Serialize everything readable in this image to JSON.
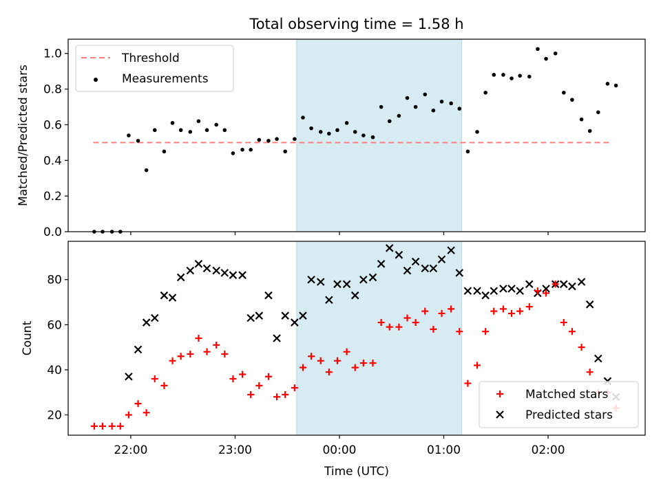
{
  "title": "Total observing time = 1.58 h",
  "colors": {
    "threshold": "#ff7f7f",
    "highlight": "#add8e6",
    "measurement": "#000000",
    "matched": "#ff0000",
    "predicted": "#000000"
  },
  "chart_data": [
    {
      "type": "scatter",
      "ylabel": "Matched/Predicted stars",
      "xlim": [
        -0.6,
        4.93
      ],
      "ylim": [
        0,
        1.08
      ],
      "yticks": [
        0.0,
        0.2,
        0.4,
        0.6,
        0.8,
        1.0
      ],
      "ytick_labels": [
        "0.0",
        "0.2",
        "0.4",
        "0.6",
        "0.8",
        "1.0"
      ],
      "legend_position": "top-left",
      "highlight_span": [
        1.59,
        3.17
      ],
      "threshold": {
        "name": "Threshold",
        "y": 0.5,
        "x_range": [
          -0.36,
          4.6
        ]
      },
      "series": [
        {
          "name": "Measurements",
          "x": [
            -0.35,
            -0.27,
            -0.18,
            -0.1,
            -0.02,
            0.07,
            0.15,
            0.23,
            0.32,
            0.4,
            0.48,
            0.57,
            0.65,
            0.73,
            0.82,
            0.9,
            0.98,
            1.07,
            1.15,
            1.23,
            1.32,
            1.4,
            1.48,
            1.57,
            1.65,
            1.73,
            1.82,
            1.9,
            1.98,
            2.07,
            2.15,
            2.23,
            2.32,
            2.4,
            2.48,
            2.57,
            2.65,
            2.73,
            2.82,
            2.9,
            2.98,
            3.07,
            3.15,
            3.23,
            3.32,
            3.4,
            3.48,
            3.57,
            3.65,
            3.73,
            3.82,
            3.9,
            3.98,
            4.07,
            4.15,
            4.23,
            4.32,
            4.4,
            4.48,
            4.57,
            4.65
          ],
          "values": [
            0,
            0,
            0,
            0,
            0.54,
            0.51,
            0.345,
            0.57,
            0.45,
            0.61,
            0.57,
            0.56,
            0.62,
            0.57,
            0.6,
            0.57,
            0.44,
            0.46,
            0.46,
            0.515,
            0.51,
            0.52,
            0.45,
            0.52,
            0.64,
            0.58,
            0.56,
            0.55,
            0.57,
            0.61,
            0.56,
            0.54,
            0.53,
            0.7,
            0.62,
            0.65,
            0.75,
            0.7,
            0.77,
            0.68,
            0.73,
            0.72,
            0.69,
            0.45,
            0.56,
            0.78,
            0.88,
            0.88,
            0.86,
            0.875,
            0.87,
            1.025,
            0.97,
            1.0,
            0.78,
            0.74,
            0.63,
            0.565,
            0.67,
            0.83,
            0.82
          ]
        }
      ]
    },
    {
      "type": "scatter",
      "ylabel": "Count",
      "xlabel": "Time (UTC)",
      "xlim": [
        -0.6,
        4.93
      ],
      "ylim": [
        11,
        97
      ],
      "yticks": [
        20,
        40,
        60,
        80
      ],
      "ytick_labels": [
        "20",
        "40",
        "60",
        "80"
      ],
      "xticks": [
        0,
        1,
        2,
        3,
        4
      ],
      "xtick_labels": [
        "22:00",
        "23:00",
        "00:00",
        "01:00",
        "02:00"
      ],
      "legend_position": "bottom-right",
      "highlight_span": [
        1.59,
        3.17
      ],
      "series": [
        {
          "name": "Matched stars",
          "marker": "plus",
          "x": [
            -0.35,
            -0.27,
            -0.18,
            -0.1,
            -0.02,
            0.07,
            0.15,
            0.23,
            0.32,
            0.4,
            0.48,
            0.57,
            0.65,
            0.73,
            0.82,
            0.9,
            0.98,
            1.07,
            1.15,
            1.23,
            1.32,
            1.4,
            1.48,
            1.57,
            1.65,
            1.73,
            1.82,
            1.9,
            1.98,
            2.07,
            2.15,
            2.23,
            2.32,
            2.4,
            2.48,
            2.57,
            2.65,
            2.73,
            2.82,
            2.9,
            2.98,
            3.07,
            3.15,
            3.23,
            3.32,
            3.4,
            3.48,
            3.57,
            3.65,
            3.73,
            3.82,
            3.9,
            3.98,
            4.07,
            4.15,
            4.23,
            4.32,
            4.4,
            4.48,
            4.57,
            4.65
          ],
          "values": [
            15,
            15,
            15,
            15,
            20,
            25,
            21,
            36,
            33,
            44,
            46,
            47,
            54,
            48,
            51,
            47,
            36,
            38,
            29,
            33,
            37,
            28,
            29,
            32,
            41,
            46,
            44,
            39,
            44,
            48,
            41,
            43,
            43,
            61,
            59,
            59,
            63,
            61,
            66,
            58,
            65,
            67,
            57,
            34,
            42,
            57,
            66,
            67,
            65,
            66,
            68,
            75,
            74,
            78,
            61,
            57,
            50,
            39,
            30,
            30,
            23
          ]
        },
        {
          "name": "Predicted stars",
          "marker": "x",
          "x": [
            -0.02,
            0.07,
            0.15,
            0.23,
            0.32,
            0.4,
            0.48,
            0.57,
            0.65,
            0.73,
            0.82,
            0.9,
            0.98,
            1.07,
            1.15,
            1.23,
            1.32,
            1.4,
            1.48,
            1.57,
            1.65,
            1.73,
            1.82,
            1.9,
            1.98,
            2.07,
            2.15,
            2.23,
            2.32,
            2.4,
            2.48,
            2.57,
            2.65,
            2.73,
            2.82,
            2.9,
            2.98,
            3.07,
            3.15,
            3.23,
            3.32,
            3.4,
            3.48,
            3.57,
            3.65,
            3.73,
            3.82,
            3.9,
            3.98,
            4.07,
            4.15,
            4.23,
            4.32,
            4.4,
            4.48,
            4.57,
            4.65
          ],
          "values": [
            37,
            49,
            61,
            63,
            73,
            72,
            81,
            84,
            87,
            85,
            84,
            83,
            82,
            82,
            63,
            64,
            73,
            54,
            64,
            61,
            64,
            80,
            79,
            71,
            78,
            78,
            73,
            80,
            81,
            87,
            94,
            91,
            84,
            88,
            85,
            85,
            89,
            93,
            83,
            75,
            75,
            73,
            75,
            76,
            76,
            75,
            78,
            74,
            76,
            78,
            78,
            77,
            79,
            69,
            45,
            35,
            28
          ]
        }
      ]
    }
  ]
}
